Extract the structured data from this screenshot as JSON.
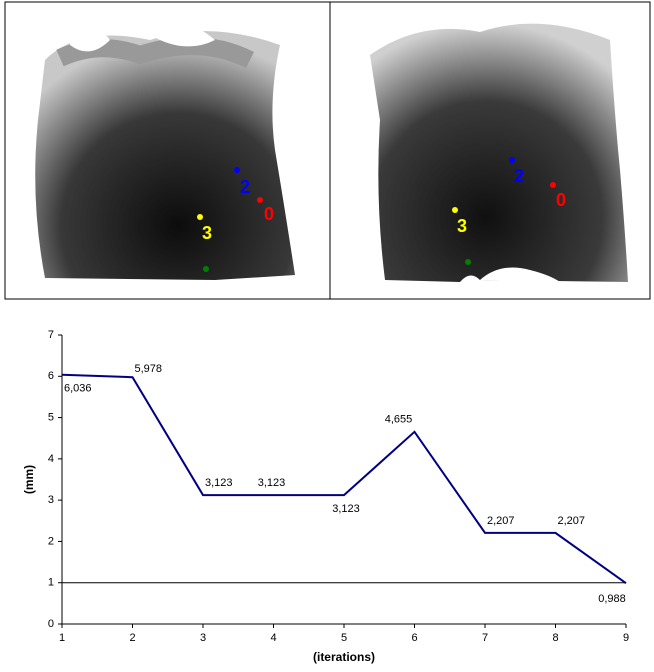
{
  "images": [
    {
      "points": [
        {
          "label": "2",
          "color": "#0000ff"
        },
        {
          "label": "0",
          "color": "#ff0000"
        },
        {
          "label": "3",
          "color": "#ffff00"
        }
      ]
    },
    {
      "points": [
        {
          "label": "2",
          "color": "#0000ff"
        },
        {
          "label": "0",
          "color": "#ff0000"
        },
        {
          "label": "3",
          "color": "#ffff00"
        }
      ]
    }
  ],
  "chart_data": {
    "type": "line",
    "x_label": "(iterations)",
    "y_label": "(mm)",
    "x": [
      1,
      2,
      3,
      4,
      5,
      6,
      7,
      8,
      9
    ],
    "series": [
      {
        "color": "#000080",
        "values": [
          6.036,
          5.978,
          3.123,
          3.123,
          3.123,
          4.655,
          2.207,
          2.207,
          0.988
        ],
        "value_labels": [
          "6,036",
          "5,978",
          "3,123",
          "3,123",
          "3,123",
          "4,655",
          "2,207",
          "2,207",
          "0,988"
        ]
      }
    ],
    "xlim": [
      1,
      9
    ],
    "xticks": [
      1,
      2,
      3,
      4,
      5,
      6,
      7,
      8,
      9
    ],
    "ylim": [
      0,
      7
    ],
    "yticks": [
      0,
      1,
      2,
      3,
      4,
      5,
      6,
      7
    ],
    "reference_line": 1
  }
}
